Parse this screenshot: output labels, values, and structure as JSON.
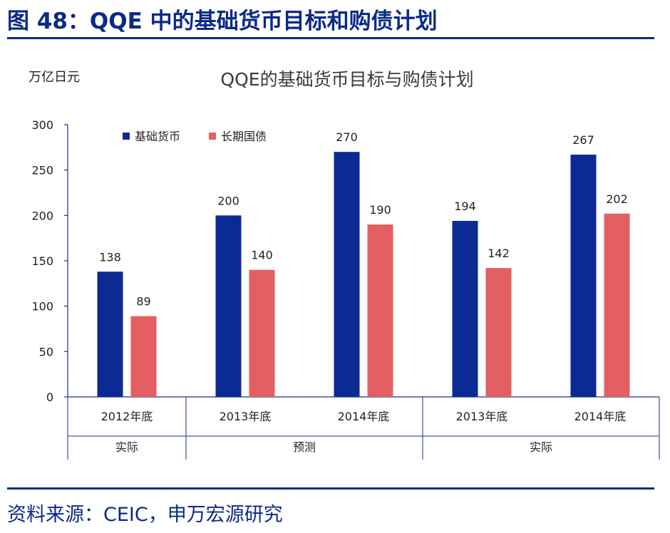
{
  "figure": {
    "title": "图 48：QQE 中的基础货币目标和购债计划",
    "source": "资料来源：CEIC，申万宏源研究"
  },
  "chart_data": {
    "type": "bar",
    "title": "QQE的基础货币目标与购债计划",
    "ylabel": "万亿日元",
    "ylim": [
      0,
      300
    ],
    "yticks": [
      0,
      50,
      100,
      150,
      200,
      250,
      300
    ],
    "categories": [
      "2012年底",
      "2013年底",
      "2014年底",
      "2013年底",
      "2014年底"
    ],
    "groups": [
      {
        "label": "实际",
        "categories": 1
      },
      {
        "label": "预测",
        "categories": 2
      },
      {
        "label": "实际",
        "categories": 2
      }
    ],
    "series": [
      {
        "name": "基础货币",
        "color": "#0b2a94",
        "values": [
          138,
          200,
          270,
          194,
          267
        ]
      },
      {
        "name": "长期国债",
        "color": "#e45f61",
        "values": [
          89,
          140,
          190,
          142,
          202
        ]
      }
    ],
    "legend_position": "top-left",
    "grid": false
  }
}
